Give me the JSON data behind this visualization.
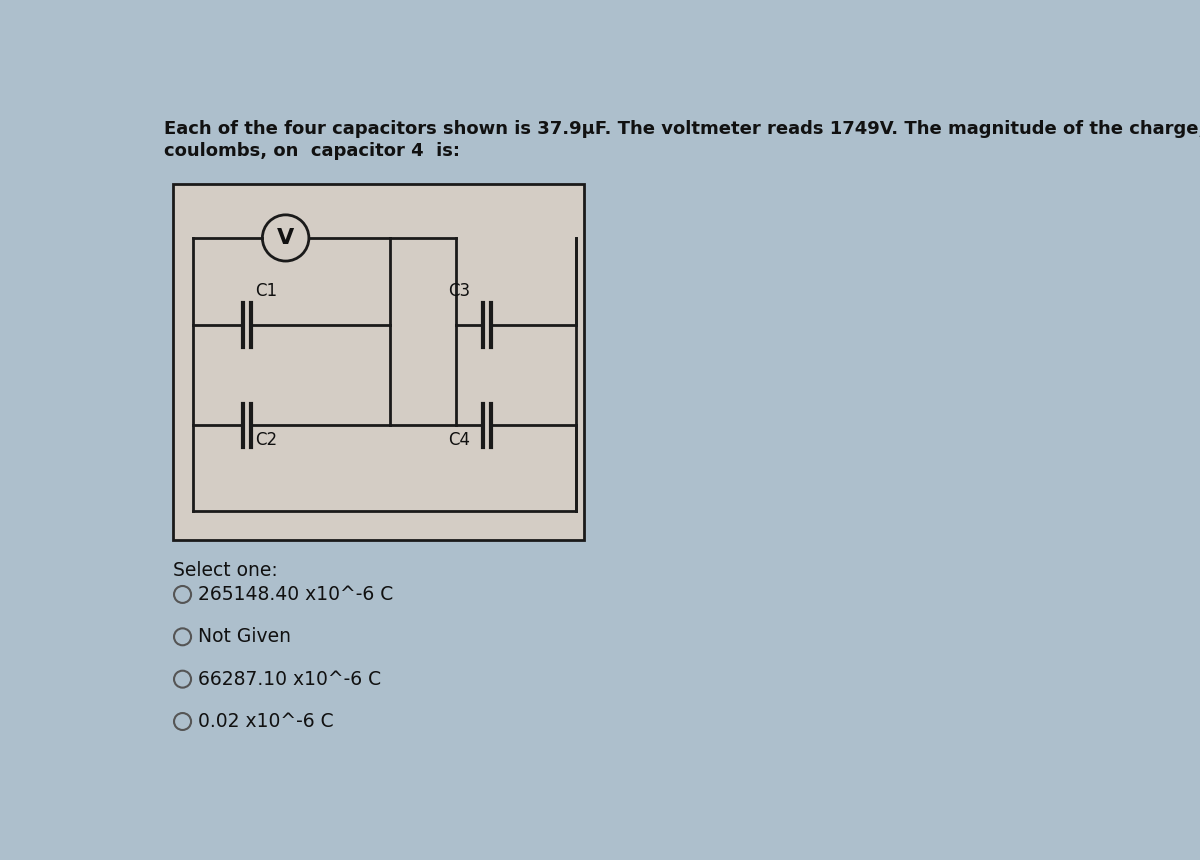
{
  "title_line1": "Each of the four capacitors shown is 37.9μF. The voltmeter reads 1749V. The magnitude of the charge, in",
  "title_line2": "coulombs, on  capacitor 4  is:",
  "bg_color": "#adbfcc",
  "diagram_bg": "#d4cdc5",
  "diagram_border": "#1a1a1a",
  "wire_color": "#1a1a1a",
  "select_one": "Select one:",
  "options": [
    "265148.40 x10^-6 C",
    "Not Given",
    "66287.10 x10^-6 C",
    "0.02 x10^-6 C"
  ],
  "title_fontsize": 13.0,
  "option_fontsize": 13.5,
  "select_fontsize": 13.5,
  "label_fontsize": 12
}
